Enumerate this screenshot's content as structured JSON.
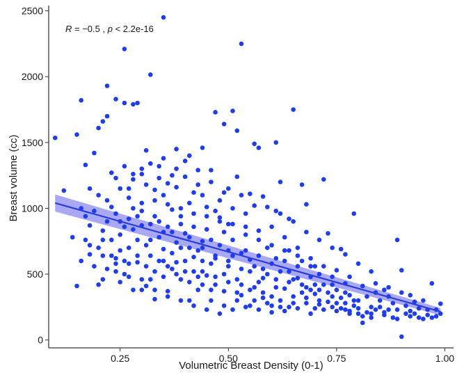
{
  "chart_data": {
    "type": "scatter",
    "xlabel": "Volumetric Breast Density (0-1)",
    "ylabel": "Breast volume (cc)",
    "xlim": [
      0.085,
      1.02
    ],
    "ylim": [
      -60,
      2540
    ],
    "x_ticks": [
      0.25,
      0.5,
      0.75,
      1.0
    ],
    "x_tick_labels": [
      "0.25",
      "0.50",
      "0.75",
      "1.00"
    ],
    "y_ticks": [
      0,
      500,
      1000,
      1500,
      2000,
      2500
    ],
    "y_tick_labels": [
      "0",
      "500",
      "1000",
      "1500",
      "2000",
      "2500"
    ],
    "grid": false,
    "point_color": "#1f3cf5",
    "annotation": {
      "r_label": "R",
      "r_text": " = −0.5 , ",
      "p_label": "p",
      "p_text": " < 2.2e-16"
    },
    "regression": {
      "x": [
        0.1,
        0.99
      ],
      "y": [
        1040,
        215
      ],
      "ci_half_width": [
        65,
        28
      ],
      "line_color": "#2a3fd6",
      "band_color": "#8b8bf0"
    },
    "points": [
      [
        0.1,
        1535
      ],
      [
        0.12,
        1135
      ],
      [
        0.14,
        780
      ],
      [
        0.15,
        410
      ],
      [
        0.15,
        1560
      ],
      [
        0.16,
        1820
      ],
      [
        0.16,
        600
      ],
      [
        0.17,
        1330
      ],
      [
        0.18,
        1150
      ],
      [
        0.18,
        870
      ],
      [
        0.19,
        1420
      ],
      [
        0.2,
        1610
      ],
      [
        0.2,
        700
      ],
      [
        0.21,
        1660
      ],
      [
        0.22,
        1930
      ],
      [
        0.22,
        1700
      ],
      [
        0.23,
        1010
      ],
      [
        0.24,
        1830
      ],
      [
        0.24,
        1230
      ],
      [
        0.25,
        440
      ],
      [
        0.26,
        2210
      ],
      [
        0.26,
        1800
      ],
      [
        0.28,
        1790
      ],
      [
        0.29,
        1800
      ],
      [
        0.32,
        2015
      ],
      [
        0.35,
        2450
      ],
      [
        0.35,
        1380
      ],
      [
        0.38,
        1450
      ],
      [
        0.41,
        1400
      ],
      [
        0.44,
        1460
      ],
      [
        0.47,
        1730
      ],
      [
        0.49,
        1640
      ],
      [
        0.51,
        1740
      ],
      [
        0.53,
        2250
      ],
      [
        0.52,
        1590
      ],
      [
        0.56,
        1490
      ],
      [
        0.57,
        1460
      ],
      [
        0.61,
        1500
      ],
      [
        0.62,
        1200
      ],
      [
        0.65,
        1750
      ],
      [
        0.67,
        1180
      ],
      [
        0.68,
        1030
      ],
      [
        0.72,
        1220
      ],
      [
        0.73,
        810
      ],
      [
        0.76,
        690
      ],
      [
        0.79,
        960
      ],
      [
        0.84,
        430
      ],
      [
        0.86,
        380
      ],
      [
        0.89,
        760
      ],
      [
        0.9,
        25
      ],
      [
        0.9,
        530
      ],
      [
        0.92,
        340
      ],
      [
        0.93,
        200
      ],
      [
        0.95,
        300
      ],
      [
        0.97,
        430
      ],
      [
        0.99,
        275
      ],
      [
        0.98,
        180
      ],
      [
        0.96,
        190
      ],
      [
        0.94,
        170
      ],
      [
        0.91,
        260
      ],
      [
        0.88,
        170
      ],
      [
        0.87,
        230
      ],
      [
        0.85,
        300
      ],
      [
        0.83,
        250
      ],
      [
        0.81,
        130
      ],
      [
        0.8,
        300
      ],
      [
        0.78,
        220
      ],
      [
        0.77,
        360
      ],
      [
        0.75,
        280
      ],
      [
        0.74,
        420
      ],
      [
        0.71,
        300
      ],
      [
        0.7,
        560
      ],
      [
        0.69,
        380
      ],
      [
        0.66,
        470
      ],
      [
        0.64,
        250
      ],
      [
        0.63,
        390
      ],
      [
        0.6,
        260
      ],
      [
        0.59,
        700
      ],
      [
        0.58,
        470
      ],
      [
        0.55,
        260
      ],
      [
        0.54,
        800
      ],
      [
        0.53,
        420
      ],
      [
        0.52,
        300
      ],
      [
        0.5,
        560
      ],
      [
        0.49,
        370
      ],
      [
        0.48,
        900
      ],
      [
        0.47,
        620
      ],
      [
        0.46,
        300
      ],
      [
        0.45,
        490
      ],
      [
        0.44,
        750
      ],
      [
        0.43,
        380
      ],
      [
        0.42,
        630
      ],
      [
        0.41,
        300
      ],
      [
        0.4,
        810
      ],
      [
        0.39,
        460
      ],
      [
        0.38,
        590
      ],
      [
        0.37,
        990
      ],
      [
        0.36,
        370
      ],
      [
        0.35,
        690
      ],
      [
        0.34,
        900
      ],
      [
        0.33,
        520
      ],
      [
        0.32,
        760
      ],
      [
        0.31,
        410
      ],
      [
        0.3,
        870
      ],
      [
        0.29,
        590
      ],
      [
        0.28,
        1000
      ],
      [
        0.27,
        700
      ],
      [
        0.26,
        500
      ],
      [
        0.25,
        900
      ],
      [
        0.24,
        620
      ],
      [
        0.23,
        760
      ],
      [
        0.22,
        540
      ],
      [
        0.21,
        830
      ],
      [
        0.2,
        420
      ],
      [
        0.19,
        980
      ],
      [
        0.18,
        650
      ],
      [
        0.17,
        940
      ],
      [
        0.2,
        1100
      ],
      [
        0.23,
        1270
      ],
      [
        0.27,
        1150
      ],
      [
        0.3,
        1300
      ],
      [
        0.33,
        1060
      ],
      [
        0.36,
        1190
      ],
      [
        0.39,
        1000
      ],
      [
        0.42,
        1120
      ],
      [
        0.45,
        940
      ],
      [
        0.48,
        1060
      ],
      [
        0.51,
        880
      ],
      [
        0.54,
        960
      ],
      [
        0.57,
        830
      ],
      [
        0.6,
        860
      ],
      [
        0.63,
        780
      ],
      [
        0.66,
        700
      ],
      [
        0.69,
        620
      ],
      [
        0.72,
        560
      ],
      [
        0.75,
        530
      ],
      [
        0.78,
        480
      ],
      [
        0.81,
        410
      ],
      [
        0.84,
        360
      ],
      [
        0.87,
        330
      ],
      [
        0.3,
        460
      ],
      [
        0.34,
        600
      ],
      [
        0.37,
        540
      ],
      [
        0.41,
        700
      ],
      [
        0.44,
        600
      ],
      [
        0.46,
        760
      ],
      [
        0.5,
        680
      ],
      [
        0.55,
        610
      ],
      [
        0.58,
        540
      ],
      [
        0.61,
        460
      ],
      [
        0.64,
        520
      ],
      [
        0.67,
        420
      ],
      [
        0.7,
        350
      ],
      [
        0.73,
        290
      ],
      [
        0.76,
        240
      ],
      [
        0.79,
        260
      ],
      [
        0.82,
        210
      ],
      [
        0.86,
        190
      ],
      [
        0.89,
        160
      ],
      [
        0.92,
        220
      ],
      [
        0.26,
        1320
      ],
      [
        0.28,
        1260
      ],
      [
        0.31,
        1180
      ],
      [
        0.34,
        1230
      ],
      [
        0.38,
        1300
      ],
      [
        0.4,
        1240
      ],
      [
        0.43,
        1180
      ],
      [
        0.46,
        1290
      ],
      [
        0.5,
        1150
      ],
      [
        0.53,
        1100
      ],
      [
        0.56,
        1020
      ],
      [
        0.59,
        1010
      ],
      [
        0.62,
        960
      ],
      [
        0.65,
        900
      ],
      [
        0.68,
        820
      ],
      [
        0.71,
        760
      ],
      [
        0.74,
        700
      ],
      [
        0.77,
        650
      ],
      [
        0.8,
        580
      ],
      [
        0.83,
        520
      ],
      [
        0.25,
        680
      ],
      [
        0.27,
        580
      ],
      [
        0.29,
        760
      ],
      [
        0.32,
        640
      ],
      [
        0.35,
        480
      ],
      [
        0.37,
        820
      ],
      [
        0.39,
        700
      ],
      [
        0.42,
        520
      ],
      [
        0.44,
        420
      ],
      [
        0.47,
        480
      ],
      [
        0.49,
        820
      ],
      [
        0.51,
        640
      ],
      [
        0.53,
        540
      ],
      [
        0.56,
        400
      ],
      [
        0.58,
        360
      ],
      [
        0.6,
        330
      ],
      [
        0.62,
        300
      ],
      [
        0.65,
        330
      ],
      [
        0.68,
        280
      ],
      [
        0.7,
        240
      ],
      [
        0.22,
        1060
      ],
      [
        0.24,
        960
      ],
      [
        0.27,
        920
      ],
      [
        0.3,
        1040
      ],
      [
        0.33,
        940
      ],
      [
        0.36,
        860
      ],
      [
        0.39,
        880
      ],
      [
        0.42,
        960
      ],
      [
        0.45,
        840
      ],
      [
        0.48,
        720
      ],
      [
        0.51,
        760
      ],
      [
        0.54,
        680
      ],
      [
        0.57,
        640
      ],
      [
        0.6,
        580
      ],
      [
        0.63,
        600
      ],
      [
        0.66,
        560
      ],
      [
        0.69,
        480
      ],
      [
        0.72,
        420
      ],
      [
        0.75,
        380
      ],
      [
        0.78,
        340
      ],
      [
        0.21,
        760
      ],
      [
        0.24,
        520
      ],
      [
        0.28,
        380
      ],
      [
        0.31,
        560
      ],
      [
        0.33,
        380
      ],
      [
        0.36,
        560
      ],
      [
        0.4,
        600
      ],
      [
        0.43,
        480
      ],
      [
        0.46,
        380
      ],
      [
        0.49,
        260
      ],
      [
        0.52,
        360
      ],
      [
        0.55,
        520
      ],
      [
        0.57,
        440
      ],
      [
        0.61,
        400
      ],
      [
        0.64,
        440
      ],
      [
        0.67,
        360
      ],
      [
        0.7,
        420
      ],
      [
        0.73,
        360
      ],
      [
        0.76,
        320
      ],
      [
        0.79,
        300
      ],
      [
        0.19,
        560
      ],
      [
        0.22,
        900
      ],
      [
        0.25,
        800
      ],
      [
        0.28,
        840
      ],
      [
        0.31,
        720
      ],
      [
        0.34,
        780
      ],
      [
        0.37,
        660
      ],
      [
        0.4,
        520
      ],
      [
        0.43,
        680
      ],
      [
        0.46,
        580
      ],
      [
        0.49,
        500
      ],
      [
        0.52,
        460
      ],
      [
        0.55,
        380
      ],
      [
        0.58,
        320
      ],
      [
        0.61,
        620
      ],
      [
        0.64,
        680
      ],
      [
        0.67,
        600
      ],
      [
        0.71,
        500
      ],
      [
        0.74,
        480
      ],
      [
        0.77,
        430
      ],
      [
        0.82,
        330
      ],
      [
        0.85,
        250
      ],
      [
        0.88,
        280
      ],
      [
        0.91,
        200
      ],
      [
        0.94,
        240
      ],
      [
        0.97,
        170
      ],
      [
        0.99,
        200
      ],
      [
        0.96,
        230
      ],
      [
        0.93,
        290
      ],
      [
        0.9,
        360
      ],
      [
        0.87,
        400
      ],
      [
        0.84,
        230
      ],
      [
        0.81,
        180
      ],
      [
        0.78,
        200
      ],
      [
        0.75,
        220
      ],
      [
        0.72,
        230
      ],
      [
        0.69,
        200
      ],
      [
        0.66,
        240
      ],
      [
        0.63,
        220
      ],
      [
        0.6,
        210
      ],
      [
        0.57,
        230
      ],
      [
        0.54,
        250
      ],
      [
        0.51,
        230
      ],
      [
        0.48,
        200
      ],
      [
        0.45,
        230
      ],
      [
        0.42,
        260
      ],
      [
        0.39,
        300
      ],
      [
        0.36,
        330
      ],
      [
        0.33,
        310
      ],
      [
        0.3,
        380
      ],
      [
        0.27,
        480
      ],
      [
        0.24,
        580
      ],
      [
        0.21,
        640
      ],
      [
        0.18,
        720
      ],
      [
        0.16,
        1000
      ],
      [
        0.17,
        760
      ],
      [
        0.21,
        460
      ],
      [
        0.23,
        640
      ],
      [
        0.26,
        860
      ],
      [
        0.29,
        940
      ],
      [
        0.32,
        880
      ],
      [
        0.35,
        820
      ],
      [
        0.38,
        740
      ],
      [
        0.41,
        780
      ],
      [
        0.44,
        700
      ],
      [
        0.47,
        640
      ],
      [
        0.5,
        600
      ],
      [
        0.53,
        660
      ],
      [
        0.56,
        560
      ],
      [
        0.59,
        500
      ],
      [
        0.62,
        520
      ],
      [
        0.65,
        460
      ],
      [
        0.68,
        400
      ],
      [
        0.71,
        380
      ],
      [
        0.74,
        330
      ],
      [
        0.77,
        280
      ],
      [
        0.8,
        240
      ],
      [
        0.83,
        200
      ],
      [
        0.86,
        210
      ],
      [
        0.89,
        230
      ],
      [
        0.92,
        180
      ],
      [
        0.95,
        160
      ],
      [
        0.98,
        230
      ],
      [
        0.27,
        1080
      ],
      [
        0.3,
        980
      ],
      [
        0.33,
        1140
      ],
      [
        0.36,
        1030
      ],
      [
        0.39,
        940
      ],
      [
        0.42,
        860
      ],
      [
        0.45,
        1010
      ],
      [
        0.48,
        930
      ],
      [
        0.51,
        1000
      ],
      [
        0.54,
        860
      ],
      [
        0.57,
        760
      ],
      [
        0.6,
        720
      ],
      [
        0.63,
        680
      ],
      [
        0.66,
        640
      ],
      [
        0.69,
        560
      ],
      [
        0.31,
        1440
      ],
      [
        0.34,
        1320
      ],
      [
        0.37,
        1250
      ],
      [
        0.4,
        1360
      ],
      [
        0.43,
        1290
      ],
      [
        0.46,
        1200
      ],
      [
        0.49,
        1120
      ],
      [
        0.52,
        1240
      ],
      [
        0.55,
        1110
      ],
      [
        0.58,
        1090
      ],
      [
        0.61,
        980
      ],
      [
        0.64,
        920
      ],
      [
        0.25,
        1150
      ],
      [
        0.28,
        1220
      ],
      [
        0.3,
        1260
      ],
      [
        0.32,
        1340
      ],
      [
        0.35,
        1100
      ],
      [
        0.38,
        1160
      ],
      [
        0.41,
        1040
      ],
      [
        0.44,
        1100
      ],
      [
        0.47,
        980
      ],
      [
        0.5,
        880
      ],
      [
        0.26,
        600
      ],
      [
        0.29,
        640
      ],
      [
        0.32,
        460
      ],
      [
        0.35,
        600
      ],
      [
        0.38,
        500
      ],
      [
        0.41,
        440
      ],
      [
        0.44,
        520
      ],
      [
        0.47,
        420
      ],
      [
        0.5,
        440
      ],
      [
        0.53,
        340
      ],
      [
        0.56,
        300
      ],
      [
        0.59,
        280
      ],
      [
        0.62,
        250
      ],
      [
        0.65,
        280
      ],
      [
        0.68,
        320
      ],
      [
        0.71,
        270
      ],
      [
        0.74,
        250
      ],
      [
        0.77,
        230
      ],
      [
        0.8,
        200
      ],
      [
        0.83,
        170
      ]
    ]
  }
}
